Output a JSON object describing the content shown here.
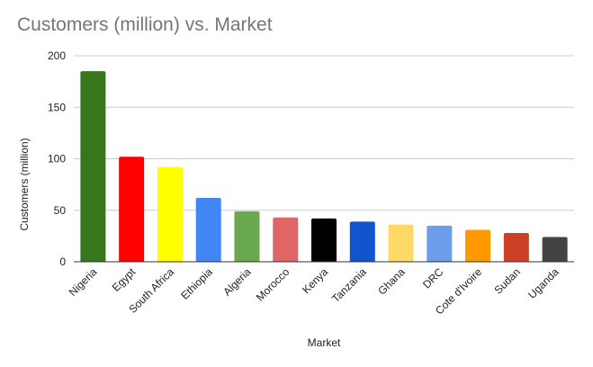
{
  "chart_data": {
    "type": "bar",
    "title": "Customers (million) vs. Market",
    "xlabel": "Market",
    "ylabel": "Customers (million)",
    "ylim": [
      0,
      200
    ],
    "yticks": [
      0,
      50,
      100,
      150,
      200
    ],
    "grid": true,
    "legend": "none",
    "categories": [
      "Nigeria",
      "Egypt",
      "South Africa",
      "Ethiopia",
      "Algeria",
      "Morocco",
      "Kenya",
      "Tanzania",
      "Ghana",
      "DRC",
      "Cote d'Ivoire",
      "Sudan",
      "Uganda"
    ],
    "values": [
      185,
      102,
      92,
      62,
      49,
      43,
      42,
      39,
      36,
      35,
      31,
      28,
      24
    ],
    "colors": [
      "#38761d",
      "#ff0000",
      "#ffff00",
      "#4285f4",
      "#6aa84f",
      "#e06666",
      "#000000",
      "#1155cc",
      "#ffd966",
      "#6d9eeb",
      "#ff9900",
      "#cc4125",
      "#434343"
    ]
  }
}
